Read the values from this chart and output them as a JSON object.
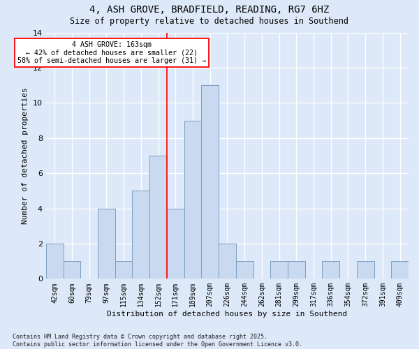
{
  "title": "4, ASH GROVE, BRADFIELD, READING, RG7 6HZ",
  "subtitle": "Size of property relative to detached houses in Southend",
  "xlabel": "Distribution of detached houses by size in Southend",
  "ylabel": "Number of detached properties",
  "footer_line1": "Contains HM Land Registry data © Crown copyright and database right 2025.",
  "footer_line2": "Contains public sector information licensed under the Open Government Licence v3.0.",
  "annotation_title": "4 ASH GROVE: 163sqm",
  "annotation_line2": "← 42% of detached houses are smaller (22)",
  "annotation_line3": "58% of semi-detached houses are larger (31) →",
  "bar_color": "#c9d9f0",
  "bar_edge_color": "#7a9fc2",
  "background_color": "#dde8f8",
  "vline_color": "red",
  "vline_x_index": 7,
  "categories": [
    "42sqm",
    "60sqm",
    "79sqm",
    "97sqm",
    "115sqm",
    "134sqm",
    "152sqm",
    "171sqm",
    "189sqm",
    "207sqm",
    "226sqm",
    "244sqm",
    "262sqm",
    "281sqm",
    "299sqm",
    "317sqm",
    "336sqm",
    "354sqm",
    "372sqm",
    "391sqm",
    "409sqm"
  ],
  "values": [
    2,
    1,
    0,
    4,
    1,
    5,
    7,
    4,
    9,
    11,
    2,
    1,
    0,
    1,
    1,
    0,
    1,
    0,
    1,
    0,
    1
  ],
  "ylim": [
    0,
    14
  ],
  "yticks": [
    0,
    2,
    4,
    6,
    8,
    10,
    12,
    14
  ]
}
